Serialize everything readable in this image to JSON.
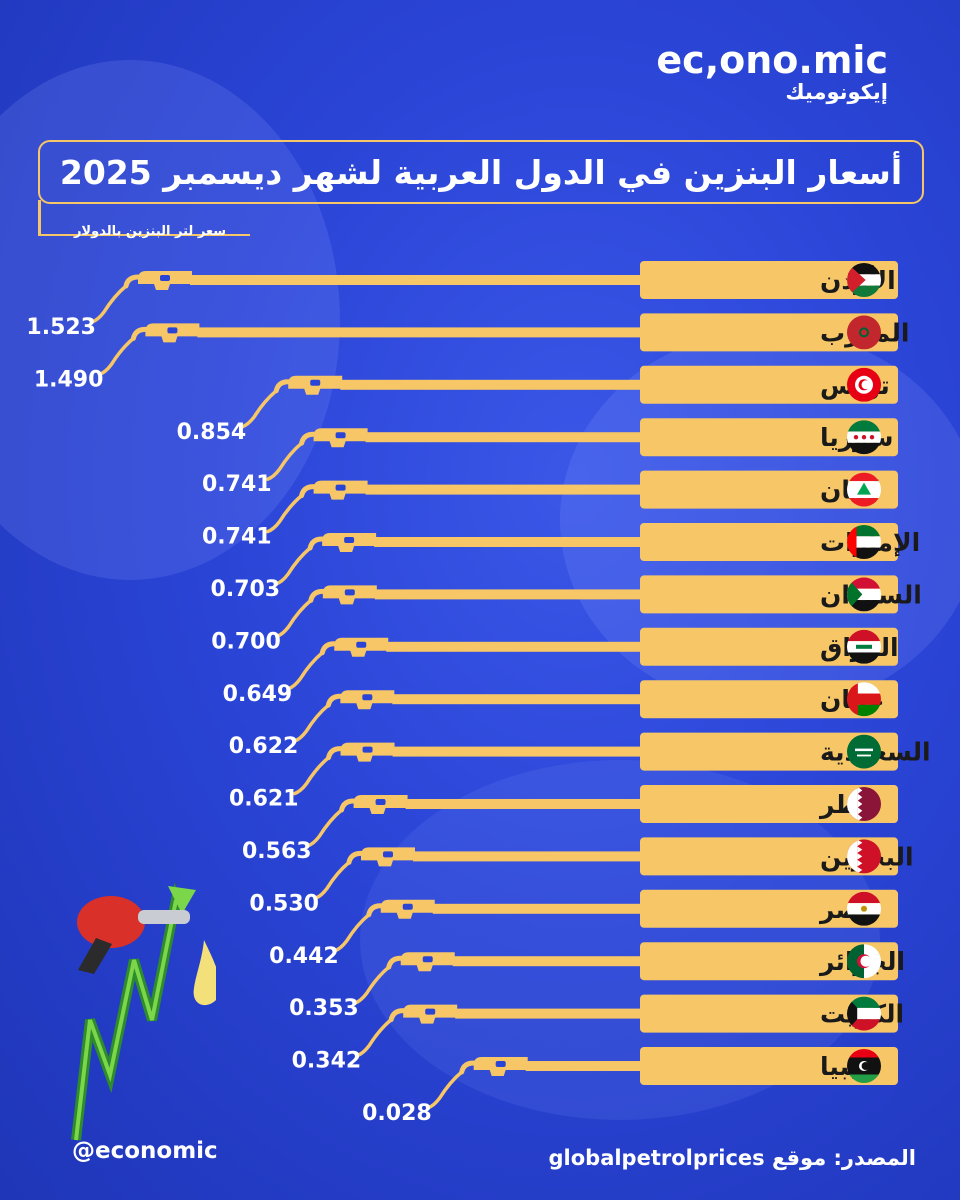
{
  "brand": {
    "name_en": "ec,ono.mic",
    "name_ar": "إيكونوميك"
  },
  "colors": {
    "background": "#2a44d6",
    "accent": "#f6c667",
    "text": "#ffffff",
    "label_text": "#1a1a1a"
  },
  "footer": {
    "handle": "@economic",
    "source": "المصدر: موقع globalpetrolprices"
  },
  "chart_data": {
    "type": "bar",
    "title": "أسعار البنزين في الدول العربية لشهر ديسمبر 2025",
    "subtitle": "سعر لتر البنزين بالدولار",
    "xlabel": "",
    "ylabel": "",
    "categories": [
      "الأردن",
      "المغرب",
      "تونس",
      "سوريا",
      "لبنان",
      "الإمارات",
      "السودان",
      "العراق",
      "عمان",
      "السعودية",
      "قطر",
      "البحرين",
      "مصر",
      "الجزائر",
      "الكويت",
      "ليبيا"
    ],
    "values": [
      1.523,
      1.49,
      0.854,
      0.741,
      0.741,
      0.703,
      0.7,
      0.649,
      0.622,
      0.621,
      0.563,
      0.53,
      0.442,
      0.353,
      0.342,
      0.028
    ],
    "value_labels": [
      "1.523",
      "1.490",
      "0.854",
      "0.741",
      "0.741",
      "0.703",
      "0.700",
      "0.649",
      "0.622",
      "0.621",
      "0.563",
      "0.530",
      "0.442",
      "0.353",
      "0.342",
      "0.028"
    ],
    "flags": [
      "jordan",
      "morocco",
      "tunisia",
      "syria",
      "lebanon",
      "uae",
      "sudan",
      "iraq",
      "oman",
      "saudi",
      "qatar",
      "bahrain",
      "egypt",
      "algeria",
      "kuwait",
      "libya"
    ]
  }
}
